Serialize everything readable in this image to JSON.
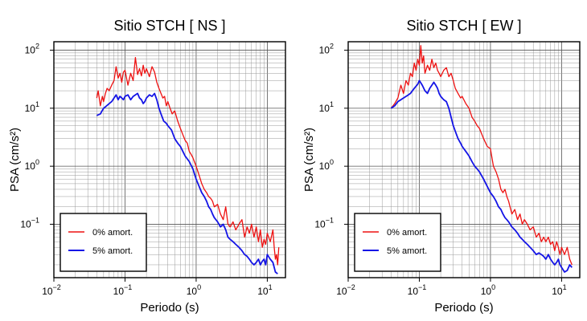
{
  "chart_data": [
    {
      "type": "line",
      "title": "Sitio STCH [ NS ]",
      "xlabel": "Periodo (s)",
      "ylabel": "PSA (cm/s²)",
      "xscale": "log",
      "yscale": "log",
      "xlim": [
        0.01,
        18
      ],
      "ylim": [
        0.012,
        140
      ],
      "x_ticks": [
        {
          "v": 0.01,
          "m": "10",
          "e": "−2"
        },
        {
          "v": 0.1,
          "m": "10",
          "e": "−1"
        },
        {
          "v": 1,
          "m": "10",
          "e": "0"
        },
        {
          "v": 10,
          "m": "10",
          "e": "1"
        }
      ],
      "y_ticks": [
        {
          "v": 0.1,
          "m": "10",
          "e": "−1"
        },
        {
          "v": 1,
          "m": "10",
          "e": "0"
        },
        {
          "v": 10,
          "m": "10",
          "e": "1"
        },
        {
          "v": 100,
          "m": "10",
          "e": "2"
        }
      ],
      "grid": true,
      "legend_position": "bottom-left",
      "series": [
        {
          "name": "0% amort.",
          "color": "#ee1111",
          "x": [
            0.04,
            0.042,
            0.045,
            0.048,
            0.05,
            0.053,
            0.056,
            0.06,
            0.065,
            0.07,
            0.075,
            0.08,
            0.085,
            0.09,
            0.095,
            0.1,
            0.11,
            0.12,
            0.13,
            0.14,
            0.15,
            0.16,
            0.17,
            0.18,
            0.19,
            0.2,
            0.22,
            0.24,
            0.26,
            0.28,
            0.3,
            0.32,
            0.34,
            0.36,
            0.38,
            0.4,
            0.43,
            0.46,
            0.5,
            0.55,
            0.6,
            0.65,
            0.7,
            0.75,
            0.8,
            0.85,
            0.9,
            1.0,
            1.1,
            1.2,
            1.3,
            1.4,
            1.5,
            1.6,
            1.7,
            1.8,
            2.0,
            2.2,
            2.4,
            2.6,
            2.8,
            3.0,
            3.3,
            3.6,
            4.0,
            4.4,
            4.8,
            5.2,
            5.6,
            6.0,
            6.5,
            7.0,
            7.5,
            8.0,
            8.5,
            9.0,
            9.5,
            10.0,
            11.0,
            12.0,
            12.5,
            13.0,
            13.5,
            14.0,
            14.5
          ],
          "y": [
            15,
            20,
            11,
            16,
            13,
            18,
            22,
            20,
            25,
            30,
            52,
            33,
            40,
            28,
            42,
            45,
            25,
            40,
            30,
            75,
            38,
            48,
            36,
            55,
            40,
            48,
            35,
            52,
            42,
            28,
            22,
            18,
            15,
            16,
            11,
            13,
            10,
            8,
            9,
            6,
            4.5,
            3.5,
            2.8,
            2.5,
            1.8,
            1.6,
            1.4,
            1.0,
            0.7,
            0.5,
            0.4,
            0.35,
            0.3,
            0.28,
            0.25,
            0.2,
            0.22,
            0.15,
            0.12,
            0.2,
            0.1,
            0.09,
            0.11,
            0.08,
            0.1,
            0.12,
            0.06,
            0.09,
            0.07,
            0.1,
            0.06,
            0.09,
            0.05,
            0.08,
            0.04,
            0.055,
            0.045,
            0.07,
            0.05,
            0.08,
            0.04,
            0.025,
            0.03,
            0.02,
            0.04
          ]
        },
        {
          "name": "5% amort.",
          "color": "#1414e6",
          "x": [
            0.04,
            0.045,
            0.05,
            0.055,
            0.06,
            0.065,
            0.07,
            0.075,
            0.08,
            0.085,
            0.09,
            0.095,
            0.1,
            0.11,
            0.12,
            0.13,
            0.14,
            0.15,
            0.16,
            0.17,
            0.18,
            0.19,
            0.2,
            0.22,
            0.24,
            0.26,
            0.28,
            0.3,
            0.32,
            0.35,
            0.38,
            0.4,
            0.45,
            0.5,
            0.55,
            0.6,
            0.65,
            0.7,
            0.8,
            0.9,
            1.0,
            1.1,
            1.2,
            1.3,
            1.4,
            1.5,
            1.6,
            1.7,
            1.8,
            2.0,
            2.2,
            2.4,
            2.6,
            2.8,
            3.0,
            3.3,
            3.6,
            4.0,
            4.4,
            4.8,
            5.2,
            5.6,
            6.0,
            6.5,
            7.0,
            7.5,
            8.0,
            8.5,
            9.0,
            9.5,
            10.0,
            11.0,
            12.0,
            13.0,
            14.0
          ],
          "y": [
            7.5,
            8.0,
            10,
            11,
            12,
            13,
            15,
            17,
            14,
            16,
            15,
            14,
            16,
            17,
            14,
            16,
            17,
            18,
            15,
            14,
            12,
            13,
            15,
            17,
            16,
            18,
            14,
            10,
            8,
            6,
            5.5,
            5,
            4.2,
            3.0,
            2.5,
            2.2,
            1.8,
            1.5,
            1.2,
            0.9,
            0.6,
            0.45,
            0.35,
            0.3,
            0.25,
            0.2,
            0.18,
            0.15,
            0.13,
            0.11,
            0.09,
            0.1,
            0.08,
            0.06,
            0.055,
            0.05,
            0.045,
            0.04,
            0.035,
            0.03,
            0.028,
            0.025,
            0.022,
            0.02,
            0.022,
            0.025,
            0.02,
            0.023,
            0.025,
            0.02,
            0.03,
            0.025,
            0.022,
            0.015,
            0.014
          ]
        }
      ]
    },
    {
      "type": "line",
      "title": "Sitio STCH [ EW ]",
      "xlabel": "Periodo (s)",
      "ylabel": "PSA (cm/s²)",
      "xscale": "log",
      "yscale": "log",
      "xlim": [
        0.01,
        18
      ],
      "ylim": [
        0.012,
        140
      ],
      "x_ticks": [
        {
          "v": 0.01,
          "m": "10",
          "e": "−2"
        },
        {
          "v": 0.1,
          "m": "10",
          "e": "−1"
        },
        {
          "v": 1,
          "m": "10",
          "e": "0"
        },
        {
          "v": 10,
          "m": "10",
          "e": "1"
        }
      ],
      "y_ticks": [
        {
          "v": 0.1,
          "m": "10",
          "e": "−1"
        },
        {
          "v": 1,
          "m": "10",
          "e": "0"
        },
        {
          "v": 10,
          "m": "10",
          "e": "1"
        },
        {
          "v": 100,
          "m": "10",
          "e": "2"
        }
      ],
      "grid": true,
      "legend_position": "bottom-left",
      "series": [
        {
          "name": "0% amort.",
          "color": "#ee1111",
          "x": [
            0.04,
            0.045,
            0.05,
            0.055,
            0.06,
            0.065,
            0.07,
            0.075,
            0.08,
            0.085,
            0.09,
            0.095,
            0.1,
            0.105,
            0.11,
            0.115,
            0.12,
            0.13,
            0.14,
            0.15,
            0.16,
            0.17,
            0.18,
            0.19,
            0.2,
            0.22,
            0.24,
            0.26,
            0.28,
            0.3,
            0.32,
            0.35,
            0.38,
            0.4,
            0.45,
            0.5,
            0.55,
            0.6,
            0.65,
            0.7,
            0.8,
            0.9,
            1.0,
            1.1,
            1.2,
            1.3,
            1.4,
            1.5,
            1.6,
            1.7,
            1.8,
            2.0,
            2.2,
            2.4,
            2.6,
            2.8,
            3.0,
            3.3,
            3.6,
            4.0,
            4.4,
            4.8,
            5.2,
            5.6,
            6.0,
            6.5,
            7.0,
            7.5,
            8.0,
            8.5,
            9.0,
            9.5,
            10.0,
            11.0,
            12.0,
            13.0,
            14.0
          ],
          "y": [
            10,
            12,
            15,
            25,
            18,
            30,
            25,
            40,
            35,
            60,
            45,
            70,
            55,
            120,
            60,
            80,
            40,
            55,
            45,
            70,
            50,
            60,
            45,
            40,
            35,
            45,
            50,
            35,
            40,
            30,
            22,
            18,
            15,
            16,
            12,
            10,
            7,
            6,
            5,
            4.5,
            3,
            2.2,
            2.0,
            1.0,
            0.8,
            0.6,
            0.4,
            0.35,
            0.4,
            0.3,
            0.25,
            0.15,
            0.18,
            0.12,
            0.15,
            0.1,
            0.12,
            0.1,
            0.08,
            0.09,
            0.06,
            0.07,
            0.05,
            0.06,
            0.05,
            0.06,
            0.045,
            0.05,
            0.035,
            0.05,
            0.04,
            0.03,
            0.04,
            0.03,
            0.04,
            0.025,
            0.02
          ]
        },
        {
          "name": "5% amort.",
          "color": "#1414e6",
          "x": [
            0.04,
            0.045,
            0.05,
            0.055,
            0.06,
            0.065,
            0.07,
            0.075,
            0.08,
            0.085,
            0.09,
            0.095,
            0.1,
            0.11,
            0.12,
            0.13,
            0.14,
            0.15,
            0.16,
            0.17,
            0.18,
            0.19,
            0.2,
            0.22,
            0.24,
            0.26,
            0.28,
            0.3,
            0.32,
            0.35,
            0.38,
            0.4,
            0.45,
            0.5,
            0.55,
            0.6,
            0.65,
            0.7,
            0.8,
            0.9,
            1.0,
            1.1,
            1.2,
            1.3,
            1.4,
            1.5,
            1.6,
            1.7,
            1.8,
            2.0,
            2.2,
            2.4,
            2.6,
            2.8,
            3.0,
            3.3,
            3.6,
            4.0,
            4.4,
            4.8,
            5.2,
            5.6,
            6.0,
            6.5,
            7.0,
            7.5,
            8.0,
            8.5,
            9.0,
            9.5,
            10.0,
            11.0,
            12.0,
            13.0,
            14.0
          ],
          "y": [
            10,
            11,
            13,
            14,
            15,
            16,
            17,
            18,
            20,
            22,
            24,
            26,
            30,
            25,
            20,
            18,
            22,
            25,
            28,
            25,
            22,
            18,
            16,
            14,
            13,
            10,
            7,
            5,
            4,
            3,
            2.5,
            2.2,
            1.8,
            1.5,
            1.2,
            1.0,
            0.9,
            0.8,
            0.6,
            0.45,
            0.35,
            0.3,
            0.25,
            0.2,
            0.18,
            0.15,
            0.13,
            0.12,
            0.11,
            0.09,
            0.08,
            0.07,
            0.06,
            0.055,
            0.05,
            0.045,
            0.04,
            0.035,
            0.03,
            0.032,
            0.03,
            0.028,
            0.025,
            0.03,
            0.025,
            0.022,
            0.02,
            0.022,
            0.025,
            0.02,
            0.018,
            0.015,
            0.016,
            0.02,
            0.018
          ]
        }
      ]
    }
  ]
}
